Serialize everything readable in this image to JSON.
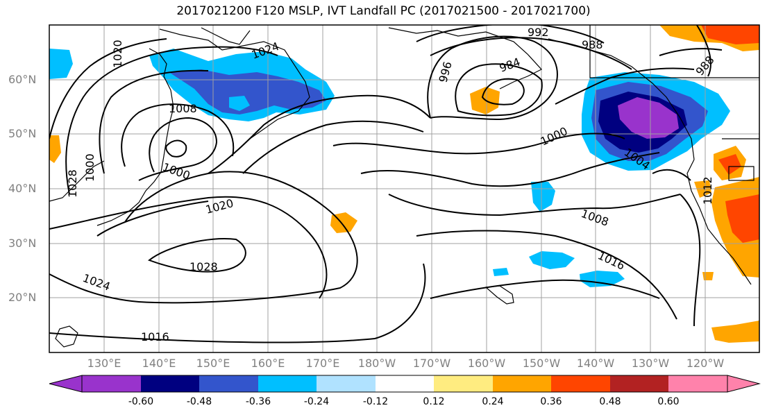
{
  "title": "2017021200 F120 MSLP, IVT Landfall PC (2017021500 - 2017021700)",
  "lat_labels": [
    "60°N",
    "50°N",
    "40°N",
    "30°N",
    "20°N"
  ],
  "lon_labels": [
    "130°E",
    "140°E",
    "150°E",
    "160°E",
    "170°E",
    "180°W",
    "170°W",
    "160°W",
    "150°W",
    "140°W",
    "130°W",
    "120°W"
  ],
  "contour_labels": [
    "1020",
    "1024",
    "992",
    "988",
    "984",
    "996",
    "988",
    "1008",
    "1000",
    "1000",
    "1028",
    "1020",
    "1000",
    "1004",
    "1008",
    "1016",
    "1028",
    "1024",
    "1016",
    "1012"
  ],
  "colorbar": {
    "ticks": [
      "-0.60",
      "-0.48",
      "-0.36",
      "-0.24",
      "-0.12",
      "0.12",
      "0.24",
      "0.36",
      "0.48",
      "0.60"
    ],
    "colors": [
      "#9933cc",
      "#000080",
      "#3355cc",
      "#00bfff",
      "#b0e2ff",
      "#ffffff",
      "#ffec80",
      "#ffa500",
      "#ff4500",
      "#b22222",
      "#ff82ab"
    ]
  }
}
